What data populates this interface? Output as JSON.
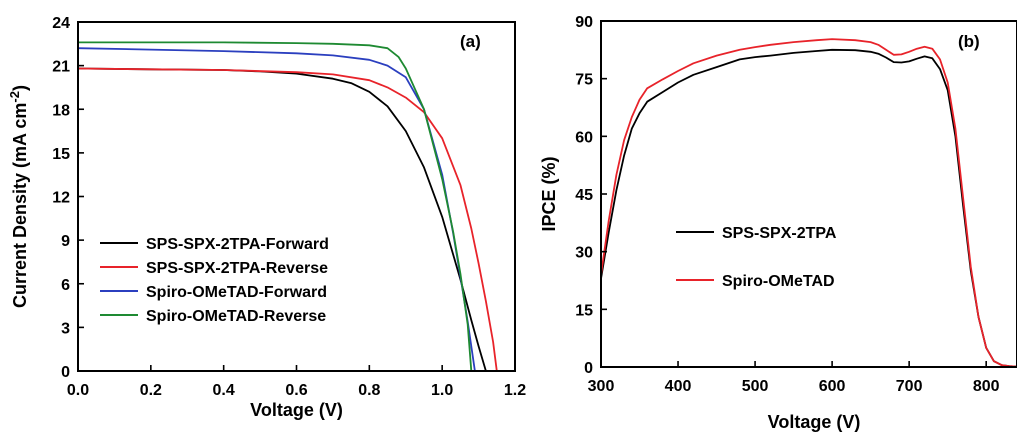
{
  "chart_data": [
    {
      "type": "line",
      "panel_label": "(a)",
      "xlabel": "Voltage (V)",
      "ylabel_main": "Current Density (mA cm",
      "ylabel_sup": "-2",
      "ylabel_end": ")",
      "xlim": [
        0,
        1.2
      ],
      "ylim": [
        0,
        24
      ],
      "xticks": [
        0,
        0.2,
        0.4,
        0.6,
        0.8,
        1.0,
        1.2
      ],
      "xtick_labels": [
        "0.0",
        "0.2",
        "0.4",
        "0.6",
        "0.8",
        "1.0",
        "1.2"
      ],
      "yticks": [
        0,
        3,
        6,
        9,
        12,
        15,
        18,
        21,
        24
      ],
      "ytick_labels": [
        "0",
        "3",
        "6",
        "9",
        "12",
        "15",
        "18",
        "21",
        "24"
      ],
      "legend_position": "lower-left",
      "series": [
        {
          "name": "SPS-SPX-2TPA-Forward",
          "color": "#000000",
          "x": [
            0,
            0.2,
            0.4,
            0.5,
            0.6,
            0.7,
            0.75,
            0.8,
            0.85,
            0.9,
            0.95,
            1.0,
            1.05,
            1.08,
            1.1,
            1.12
          ],
          "y": [
            20.8,
            20.75,
            20.7,
            20.6,
            20.45,
            20.1,
            19.8,
            19.2,
            18.2,
            16.5,
            14.0,
            10.6,
            6.3,
            3.5,
            1.7,
            0
          ]
        },
        {
          "name": "SPS-SPX-2TPA-Reverse",
          "color": "#e8232a",
          "x": [
            0,
            0.2,
            0.4,
            0.6,
            0.7,
            0.8,
            0.85,
            0.9,
            0.95,
            1.0,
            1.05,
            1.08,
            1.1,
            1.12,
            1.14,
            1.15
          ],
          "y": [
            20.8,
            20.75,
            20.7,
            20.55,
            20.4,
            20.0,
            19.5,
            18.8,
            17.8,
            16.0,
            12.8,
            9.8,
            7.4,
            4.8,
            2.0,
            0
          ]
        },
        {
          "name": "Spiro-OMeTAD-Forward",
          "color": "#2b3fbf",
          "x": [
            0,
            0.2,
            0.4,
            0.6,
            0.7,
            0.8,
            0.85,
            0.9,
            0.95,
            1.0,
            1.03,
            1.05,
            1.07,
            1.09
          ],
          "y": [
            22.2,
            22.1,
            22.0,
            21.85,
            21.7,
            21.4,
            21.0,
            20.2,
            18.0,
            13.5,
            9.5,
            6.5,
            3.4,
            0
          ]
        },
        {
          "name": "Spiro-OMeTAD-Reverse",
          "color": "#1e8a32",
          "x": [
            0,
            0.2,
            0.4,
            0.6,
            0.7,
            0.8,
            0.85,
            0.88,
            0.9,
            0.95,
            1.0,
            1.03,
            1.05,
            1.07,
            1.08
          ],
          "y": [
            22.6,
            22.6,
            22.6,
            22.55,
            22.5,
            22.4,
            22.2,
            21.6,
            20.8,
            18.0,
            13.2,
            9.6,
            6.7,
            3.2,
            0
          ]
        }
      ]
    },
    {
      "type": "line",
      "panel_label": "(b)",
      "xlabel": "Voltage (V)",
      "ylabel": "IPCE (%)",
      "xlim": [
        300,
        840
      ],
      "ylim": [
        0,
        90
      ],
      "xticks": [
        300,
        400,
        500,
        600,
        700,
        800
      ],
      "xtick_labels": [
        "300",
        "400",
        "500",
        "600",
        "700",
        "800"
      ],
      "yticks": [
        0,
        15,
        30,
        45,
        60,
        75,
        90
      ],
      "ytick_labels": [
        "0",
        "15",
        "30",
        "45",
        "60",
        "75",
        "90"
      ],
      "legend_position": "middle-left",
      "series": [
        {
          "name": "SPS-SPX-2TPA",
          "color": "#000000",
          "x": [
            300,
            310,
            320,
            330,
            340,
            350,
            360,
            380,
            400,
            420,
            450,
            480,
            500,
            520,
            550,
            580,
            600,
            630,
            650,
            660,
            670,
            680,
            690,
            700,
            710,
            720,
            730,
            740,
            750,
            760,
            770,
            780,
            790,
            800,
            810,
            820,
            830,
            840
          ],
          "y": [
            23,
            35,
            46,
            55,
            62,
            66,
            69,
            71.5,
            74,
            76,
            78,
            80,
            80.6,
            81,
            81.7,
            82.2,
            82.5,
            82.4,
            82,
            81.5,
            80.5,
            79.3,
            79.2,
            79.5,
            80.2,
            80.8,
            80.3,
            77.5,
            72,
            60,
            42,
            25,
            13,
            5,
            1.5,
            0.5,
            0.2,
            0.1
          ]
        },
        {
          "name": "Spiro-OMeTAD",
          "color": "#e8232a",
          "x": [
            300,
            310,
            320,
            330,
            340,
            350,
            360,
            380,
            400,
            420,
            450,
            480,
            500,
            520,
            550,
            580,
            600,
            630,
            650,
            660,
            670,
            680,
            690,
            700,
            710,
            720,
            730,
            740,
            750,
            760,
            770,
            780,
            790,
            800,
            810,
            820,
            830,
            840
          ],
          "y": [
            24,
            38,
            50,
            59,
            65,
            69.5,
            72.5,
            74.8,
            77,
            79,
            81,
            82.5,
            83.2,
            83.8,
            84.5,
            85,
            85.3,
            85,
            84.5,
            83.8,
            82.5,
            81.2,
            81.3,
            82,
            82.8,
            83.3,
            82.8,
            80,
            74,
            62,
            44,
            26,
            13,
            5,
            1.5,
            0.5,
            0.2,
            0.1
          ]
        }
      ]
    }
  ]
}
